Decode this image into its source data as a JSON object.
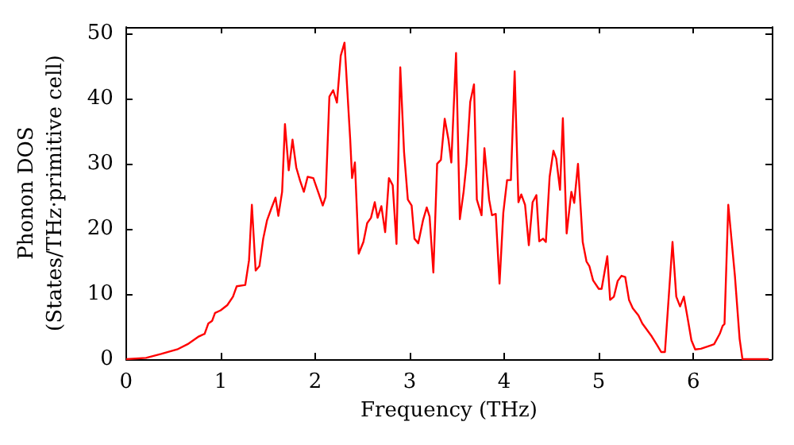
{
  "chart_data": {
    "type": "line",
    "xlabel": "Frequency (THz)",
    "ylabel": "Phonon DOS\n(States/THz·primitive cell)",
    "x": [
      0,
      0.21,
      0.37,
      0.54,
      0.65,
      0.77,
      0.83,
      0.87,
      0.91,
      0.94,
      1.0,
      1.07,
      1.13,
      1.17,
      1.26,
      1.3,
      1.33,
      1.37,
      1.41,
      1.45,
      1.49,
      1.54,
      1.58,
      1.61,
      1.65,
      1.68,
      1.72,
      1.76,
      1.8,
      1.84,
      1.88,
      1.92,
      1.98,
      2.04,
      2.08,
      2.11,
      2.15,
      2.19,
      2.23,
      2.27,
      2.31,
      2.37,
      2.39,
      2.42,
      2.46,
      2.51,
      2.55,
      2.59,
      2.63,
      2.66,
      2.7,
      2.74,
      2.78,
      2.82,
      2.86,
      2.9,
      2.94,
      2.98,
      3.02,
      3.05,
      3.09,
      3.14,
      3.18,
      3.21,
      3.25,
      3.29,
      3.33,
      3.37,
      3.41,
      3.44,
      3.49,
      3.53,
      3.57,
      3.6,
      3.64,
      3.68,
      3.71,
      3.76,
      3.79,
      3.84,
      3.87,
      3.91,
      3.95,
      3.99,
      4.03,
      4.07,
      4.11,
      4.15,
      4.18,
      4.22,
      4.26,
      4.3,
      4.34,
      4.37,
      4.41,
      4.44,
      4.48,
      4.52,
      4.55,
      4.59,
      4.62,
      4.66,
      4.71,
      4.74,
      4.78,
      4.83,
      4.87,
      4.9,
      4.94,
      5.0,
      5.03,
      5.09,
      5.12,
      5.16,
      5.2,
      5.24,
      5.28,
      5.32,
      5.36,
      5.42,
      5.46,
      5.56,
      5.62,
      5.66,
      5.7,
      5.78,
      5.82,
      5.86,
      5.9,
      5.94,
      5.98,
      6.02,
      6.08,
      6.18,
      6.22,
      6.28,
      6.31,
      6.33,
      6.37,
      6.44,
      6.49,
      6.52,
      6.8
    ],
    "series": [
      {
        "color": "#ff0000",
        "values": [
          0,
          0.2,
          0.8,
          1.5,
          2.3,
          3.5,
          3.9,
          5.5,
          5.9,
          7.1,
          7.5,
          8.3,
          9.6,
          11.2,
          11.4,
          15.2,
          23.7,
          13.6,
          14.3,
          18.5,
          21.3,
          23.3,
          24.8,
          22,
          25.7,
          36.1,
          29,
          33.7,
          29.4,
          27.4,
          25.7,
          28,
          27.8,
          25.3,
          23.6,
          24.9,
          40.3,
          41.3,
          39.4,
          46.6,
          48.6,
          33.8,
          27.8,
          30.2,
          16.2,
          18,
          20.9,
          21.7,
          24.1,
          21.7,
          23.5,
          19.5,
          27.8,
          26.7,
          17.7,
          44.8,
          31.8,
          24.5,
          23.6,
          18.5,
          17.8,
          21.3,
          23.3,
          21.9,
          13.3,
          30,
          30.6,
          36.9,
          33.7,
          30.2,
          47,
          21.5,
          25.7,
          30,
          39.5,
          42.2,
          24.5,
          22.1,
          32.4,
          24.5,
          22.1,
          22.3,
          11.6,
          22.5,
          27.5,
          27.5,
          44.2,
          24.1,
          25.3,
          23.7,
          17.5,
          24.1,
          25.2,
          18.1,
          18.5,
          18,
          28,
          32,
          30.8,
          26,
          37,
          19.3,
          25.7,
          24,
          30,
          18,
          15,
          14.3,
          12.1,
          10.8,
          10.8,
          15.8,
          9.1,
          9.6,
          12,
          12.8,
          12.6,
          9.1,
          7.8,
          6.7,
          5.5,
          3.5,
          2.1,
          1.1,
          1.1,
          18,
          9.6,
          8.1,
          9.6,
          6.3,
          2.9,
          1.5,
          1.6,
          2.1,
          2.3,
          3.9,
          5.1,
          5.4,
          23.7,
          12.8,
          3.1,
          0,
          0
        ]
      }
    ],
    "xlim": [
      0,
      6.83
    ],
    "xticks": [
      0,
      1,
      2,
      3,
      4,
      5,
      6
    ],
    "ylim": [
      0,
      51
    ],
    "yticks": [
      0,
      10,
      20,
      30,
      40,
      50
    ],
    "grid": false,
    "marker": "none",
    "line_style": "solid"
  }
}
